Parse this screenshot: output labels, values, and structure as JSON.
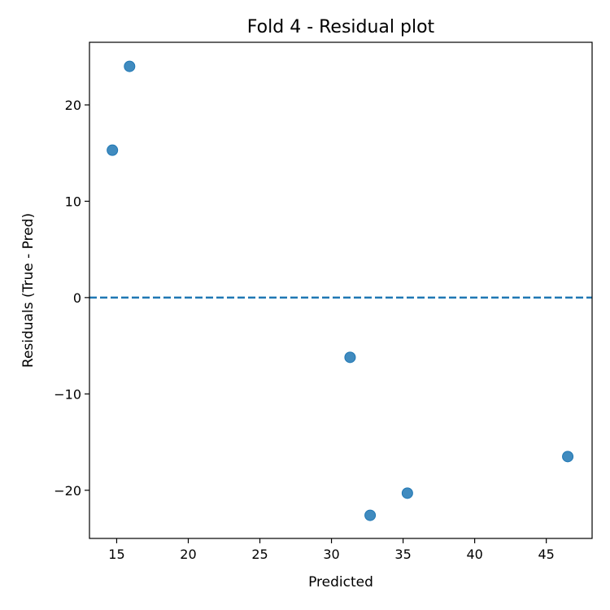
{
  "chart_data": {
    "type": "scatter",
    "title": "Fold 4 - Residual plot",
    "xlabel": "Predicted",
    "ylabel": "Residuals (True - Pred)",
    "xlim": [
      13.1,
      48.2
    ],
    "ylim": [
      -25.0,
      26.5
    ],
    "xticks": [
      15,
      20,
      25,
      30,
      35,
      40,
      45
    ],
    "yticks": [
      -20,
      -10,
      0,
      10,
      20
    ],
    "xtick_labels": [
      "15",
      "20",
      "25",
      "30",
      "35",
      "40",
      "45"
    ],
    "ytick_labels": [
      "−20",
      "−10",
      "0",
      "10",
      "20"
    ],
    "grid": false,
    "reference_line": {
      "y": 0,
      "style": "dashed",
      "color": "#1f77b4"
    },
    "series": [
      {
        "marker_color": "#1f77b4",
        "points": [
          {
            "x": 14.7,
            "y": 15.3
          },
          {
            "x": 15.9,
            "y": 24.0
          },
          {
            "x": 31.3,
            "y": -6.2
          },
          {
            "x": 32.7,
            "y": -22.6
          },
          {
            "x": 35.3,
            "y": -20.3
          },
          {
            "x": 46.5,
            "y": -16.5
          }
        ]
      }
    ]
  }
}
